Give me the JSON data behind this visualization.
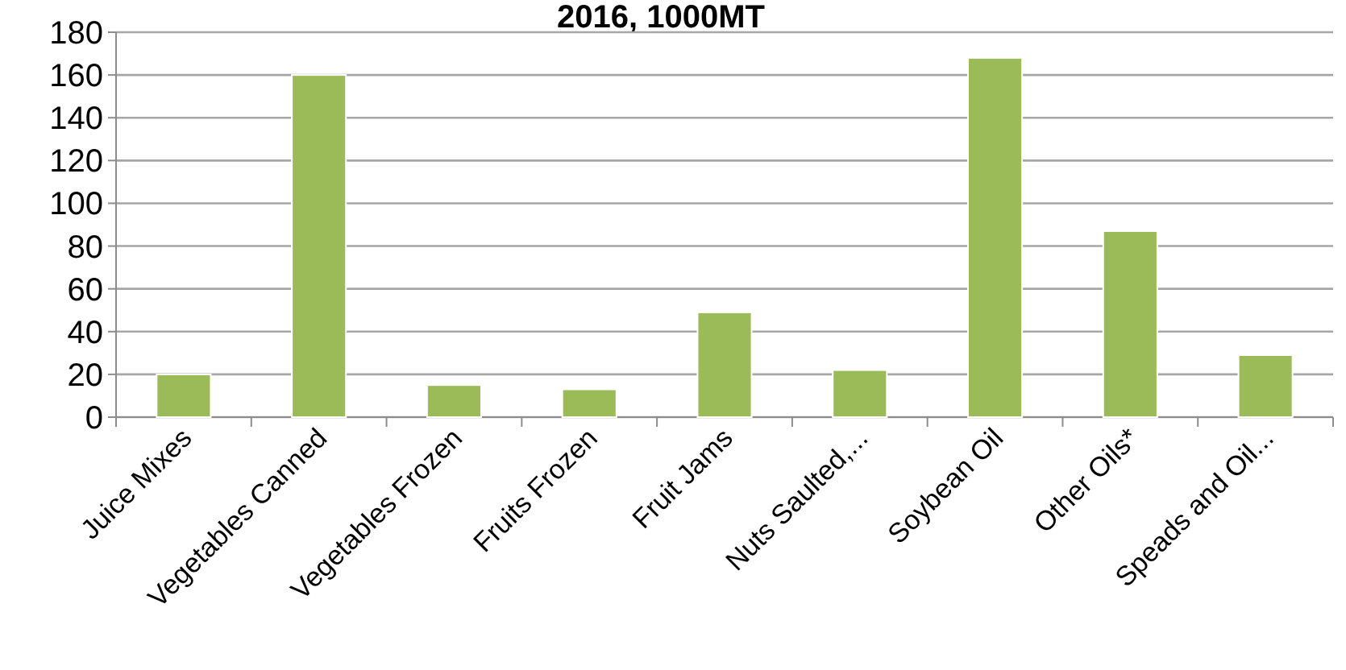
{
  "chart_data": {
    "type": "bar",
    "title": "2016, 1000MT",
    "categories": [
      "Juice Mixes",
      "Vegetables Canned",
      "Vegetables Frozen",
      "Fruits Frozen",
      "Fruit Jams",
      "Nuts Saulted,...",
      "Soybean Oil",
      "Other Oils*",
      "Speads and Oil..."
    ],
    "values": [
      20,
      160,
      15,
      13,
      49,
      22,
      168,
      87,
      29
    ],
    "color": "#9bbb59",
    "ylim": [
      0,
      180
    ],
    "yticks": [
      0,
      20,
      40,
      60,
      80,
      100,
      120,
      140,
      160,
      180
    ],
    "grid": "y"
  }
}
